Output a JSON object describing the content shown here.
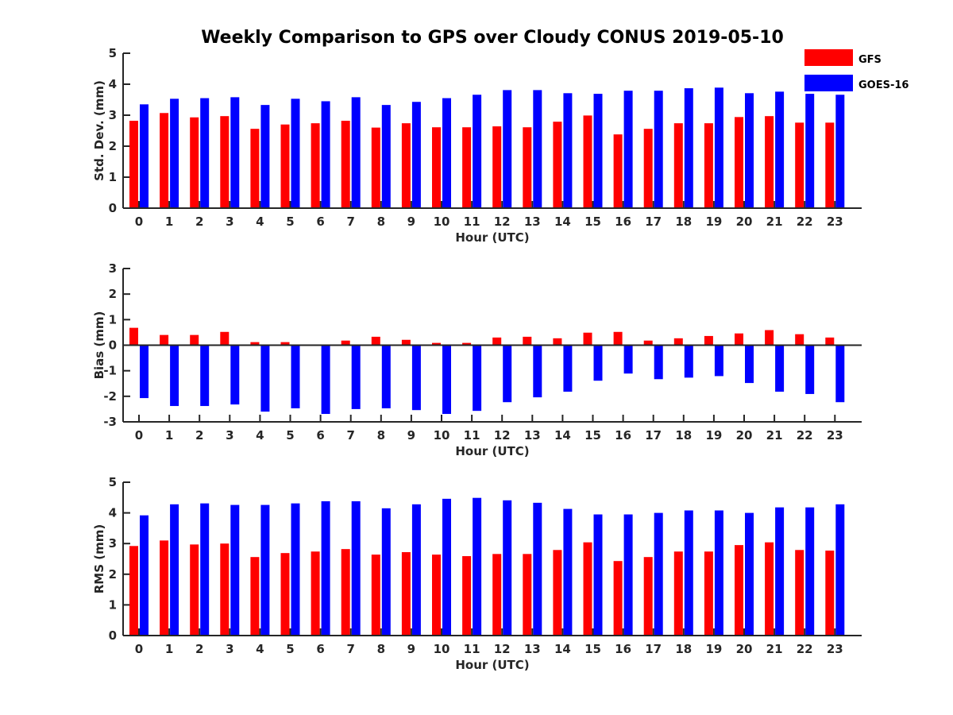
{
  "chart_data": [
    {
      "type": "bar",
      "title": "Weekly Comparison to GPS over Cloudy CONUS 2019-05-10",
      "xlabel": "Hour (UTC)",
      "ylabel": "Std. Dev. (mm)",
      "ylim": [
        0,
        5
      ],
      "yticks": [
        "0",
        "1",
        "2",
        "3",
        "4",
        "5"
      ],
      "categories": [
        "0",
        "1",
        "2",
        "3",
        "4",
        "5",
        "6",
        "7",
        "8",
        "9",
        "10",
        "11",
        "12",
        "13",
        "14",
        "15",
        "16",
        "17",
        "18",
        "19",
        "20",
        "21",
        "22",
        "23"
      ],
      "legend_placement": "top-right",
      "series": [
        {
          "name": "GFS",
          "color": "#ff0000",
          "values": [
            2.82,
            3.07,
            2.93,
            2.97,
            2.56,
            2.7,
            2.74,
            2.82,
            2.6,
            2.74,
            2.61,
            2.61,
            2.64,
            2.61,
            2.79,
            2.99,
            2.38,
            2.56,
            2.74,
            2.74,
            2.94,
            2.97,
            2.76,
            2.76
          ]
        },
        {
          "name": "GOES-16",
          "color": "#0000ff",
          "values": [
            3.35,
            3.53,
            3.55,
            3.58,
            3.33,
            3.53,
            3.45,
            3.58,
            3.33,
            3.43,
            3.55,
            3.66,
            3.81,
            3.81,
            3.71,
            3.69,
            3.79,
            3.79,
            3.87,
            3.89,
            3.71,
            3.76,
            3.69,
            3.66
          ]
        }
      ]
    },
    {
      "type": "bar",
      "xlabel": "Hour (UTC)",
      "ylabel": "Bias (mm)",
      "ylim": [
        -3,
        3
      ],
      "yticks": [
        "-3",
        "-2",
        "-1",
        "0",
        "1",
        "2",
        "3"
      ],
      "categories": [
        "0",
        "1",
        "2",
        "3",
        "4",
        "5",
        "6",
        "7",
        "8",
        "9",
        "10",
        "11",
        "12",
        "13",
        "14",
        "15",
        "16",
        "17",
        "18",
        "19",
        "20",
        "21",
        "22",
        "23"
      ],
      "series": [
        {
          "name": "GFS",
          "color": "#ff0000",
          "values": [
            0.68,
            0.4,
            0.4,
            0.52,
            0.12,
            0.12,
            0.0,
            0.18,
            0.33,
            0.21,
            0.09,
            0.09,
            0.3,
            0.33,
            0.27,
            0.49,
            0.52,
            0.18,
            0.27,
            0.36,
            0.46,
            0.59,
            0.43,
            0.3
          ]
        },
        {
          "name": "GOES-16",
          "color": "#0000ff",
          "values": [
            -2.07,
            -2.38,
            -2.38,
            -2.32,
            -2.6,
            -2.47,
            -2.69,
            -2.5,
            -2.47,
            -2.54,
            -2.69,
            -2.57,
            -2.23,
            -2.04,
            -1.82,
            -1.39,
            -1.11,
            -1.33,
            -1.27,
            -1.21,
            -1.48,
            -1.82,
            -1.91,
            -2.23
          ]
        }
      ]
    },
    {
      "type": "bar",
      "xlabel": "Hour (UTC)",
      "ylabel": "RMS (mm)",
      "ylim": [
        0,
        5
      ],
      "yticks": [
        "0",
        "1",
        "2",
        "3",
        "4",
        "5"
      ],
      "categories": [
        "0",
        "1",
        "2",
        "3",
        "4",
        "5",
        "6",
        "7",
        "8",
        "9",
        "10",
        "11",
        "12",
        "13",
        "14",
        "15",
        "16",
        "17",
        "18",
        "19",
        "20",
        "21",
        "22",
        "23"
      ],
      "series": [
        {
          "name": "GFS",
          "color": "#ff0000",
          "values": [
            2.92,
            3.1,
            2.97,
            3.0,
            2.56,
            2.69,
            2.74,
            2.82,
            2.64,
            2.72,
            2.64,
            2.59,
            2.66,
            2.66,
            2.79,
            3.04,
            2.43,
            2.56,
            2.74,
            2.74,
            2.95,
            3.04,
            2.79,
            2.77
          ]
        },
        {
          "name": "GOES-16",
          "color": "#0000ff",
          "values": [
            3.92,
            4.28,
            4.31,
            4.26,
            4.26,
            4.31,
            4.38,
            4.38,
            4.15,
            4.28,
            4.46,
            4.49,
            4.41,
            4.33,
            4.13,
            3.95,
            3.95,
            4.0,
            4.08,
            4.08,
            4.0,
            4.18,
            4.18,
            4.28
          ]
        }
      ]
    }
  ]
}
